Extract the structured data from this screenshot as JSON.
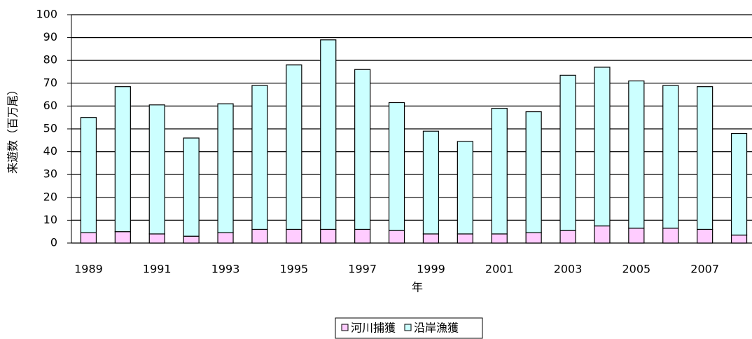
{
  "chart_data": {
    "type": "bar",
    "stacked": true,
    "xlabel": "年",
    "ylabel": "来遊数（百万尾）",
    "categories": [
      "1989",
      null,
      "1991",
      null,
      "1993",
      null,
      "1995",
      null,
      "1997",
      null,
      "1999",
      null,
      "2001",
      null,
      "2003",
      null,
      "2005",
      null,
      "2007",
      null
    ],
    "series": [
      {
        "name": "河川捕獲",
        "color": "#ffccff",
        "values": [
          4.5,
          5,
          4,
          3,
          4.5,
          6,
          6,
          6,
          6,
          5.5,
          4,
          4,
          4,
          4.5,
          5.5,
          7.5,
          6.5,
          6.5,
          6,
          3.5
        ]
      },
      {
        "name": "沿岸漁獲",
        "color": "#ccffff",
        "values": [
          50.5,
          63.5,
          56.5,
          43,
          56.5,
          63,
          72,
          83,
          70,
          56,
          45,
          40.5,
          55,
          53,
          68,
          69.5,
          64.5,
          62.5,
          62.5,
          44.5
        ]
      }
    ],
    "ylim": [
      0,
      100
    ],
    "yticks": [
      0,
      10,
      20,
      30,
      40,
      50,
      60,
      70,
      80,
      90,
      100
    ],
    "grid": true
  }
}
